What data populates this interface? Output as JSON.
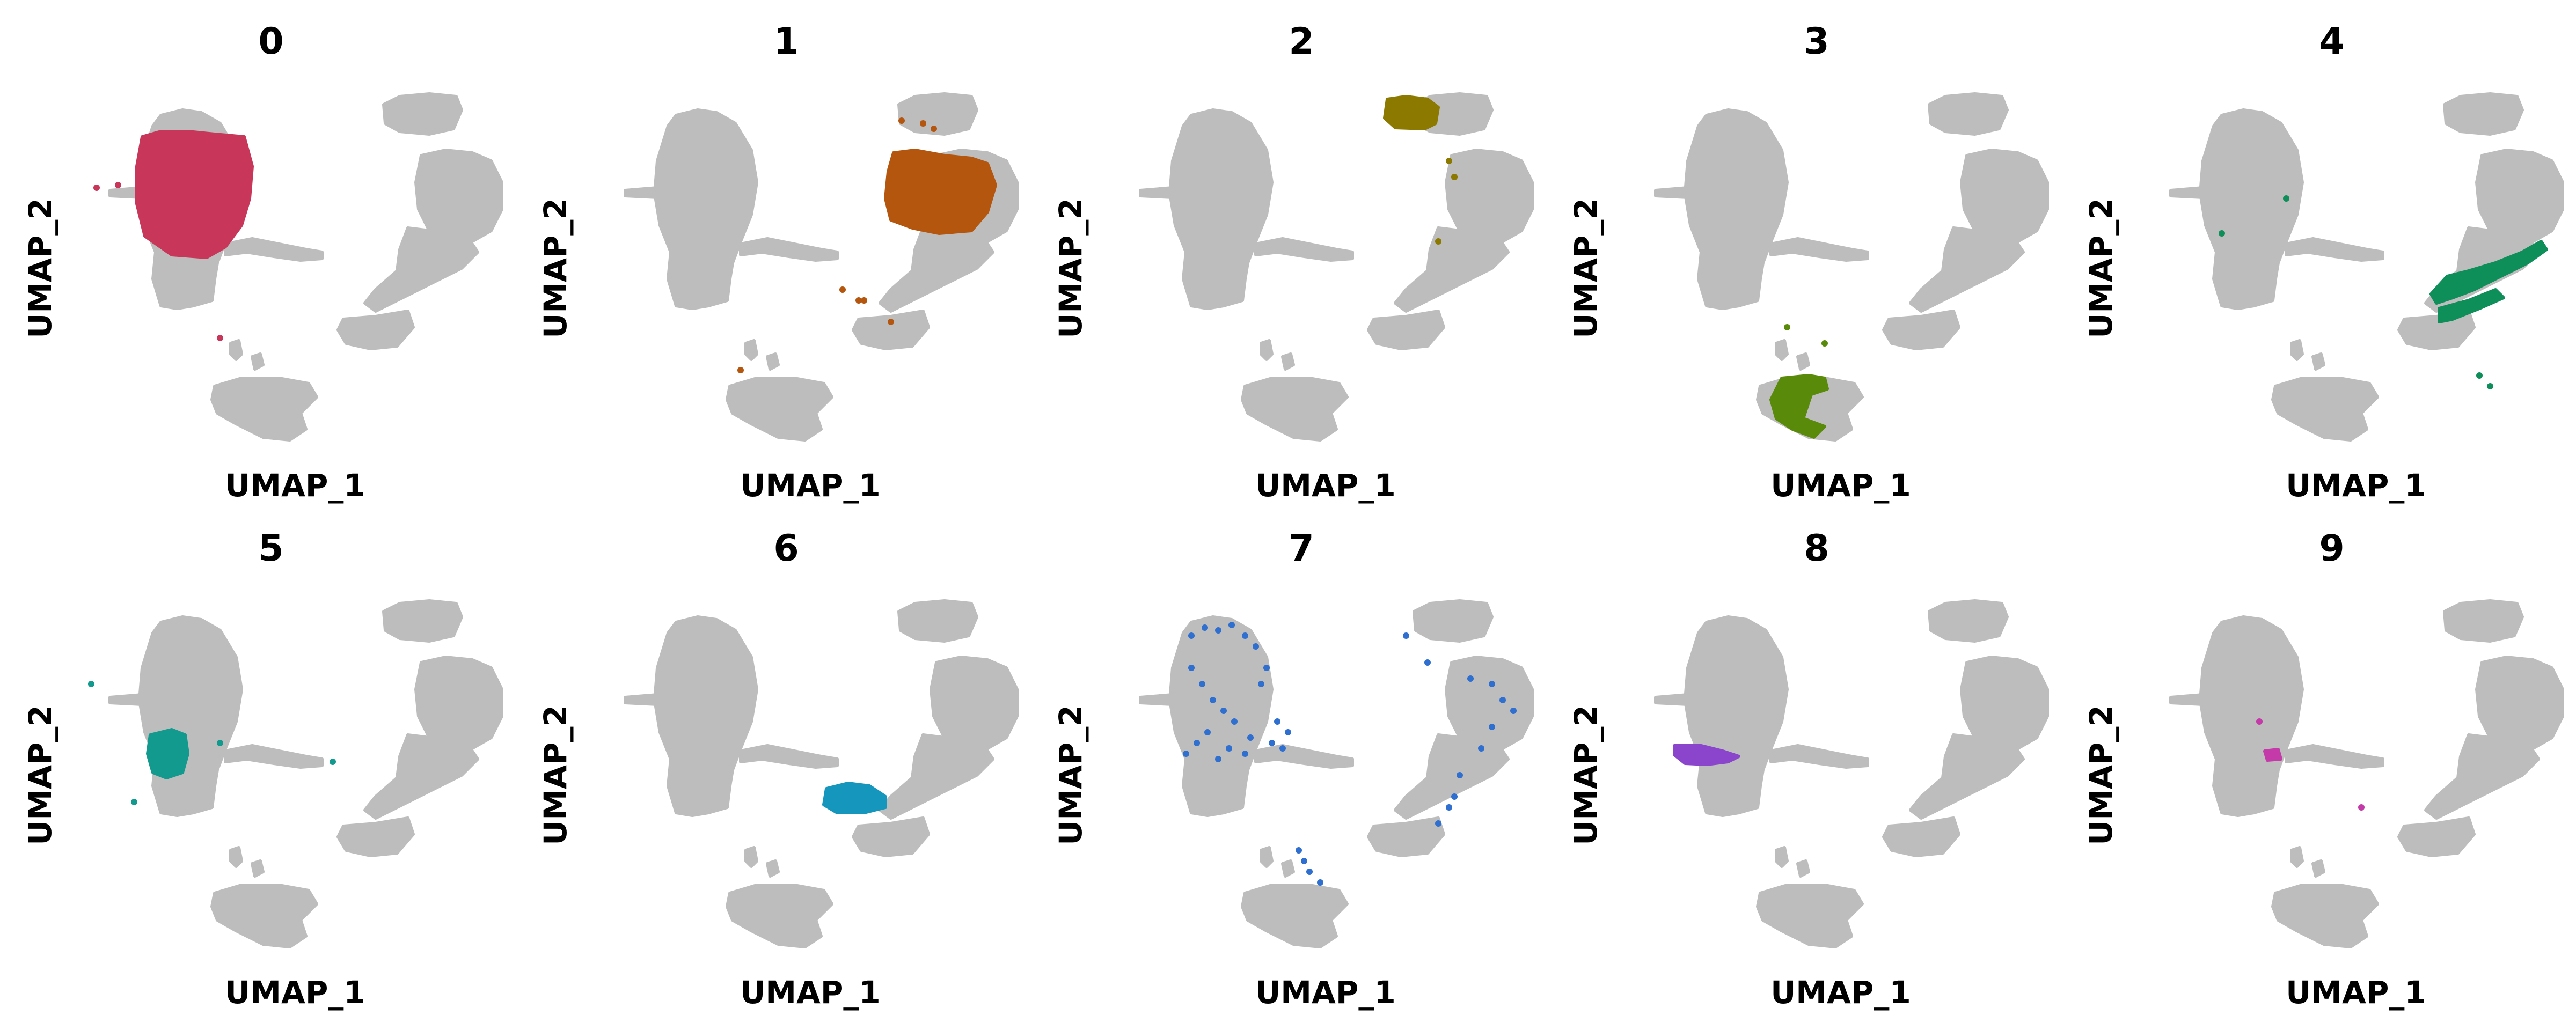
{
  "chart_data": {
    "type": "scatter",
    "xlabel": "UMAP_1",
    "ylabel": "UMAP_2",
    "background_color": "#bdbdbd",
    "layout": "2 rows x 5 columns of small-multiple UMAP panels",
    "panels": [
      {
        "title": "0",
        "color": "#c8375a",
        "cluster": "0"
      },
      {
        "title": "1",
        "color": "#b5560f",
        "cluster": "1"
      },
      {
        "title": "2",
        "color": "#8c7a00",
        "cluster": "2"
      },
      {
        "title": "3",
        "color": "#5a8a0a",
        "cluster": "3"
      },
      {
        "title": "4",
        "color": "#0e8f5a",
        "cluster": "4"
      },
      {
        "title": "5",
        "color": "#139a8f",
        "cluster": "5"
      },
      {
        "title": "6",
        "color": "#1596bd",
        "cluster": "6"
      },
      {
        "title": "7",
        "color": "#2f6fd0",
        "cluster": "7"
      },
      {
        "title": "8",
        "color": "#8a45cc",
        "cluster": "8"
      },
      {
        "title": "9",
        "color": "#c33aa8",
        "cluster": "9"
      }
    ]
  }
}
